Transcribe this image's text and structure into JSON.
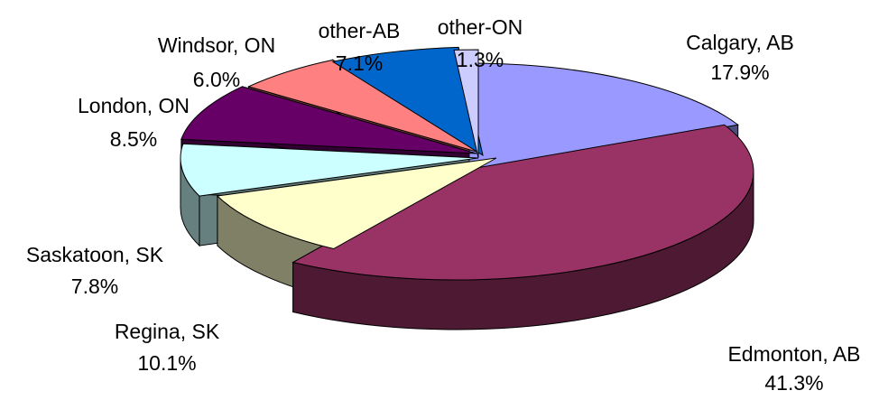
{
  "chart_data": {
    "type": "pie",
    "title": "",
    "legend": "none",
    "slices": [
      {
        "label": "Calgary, AB",
        "value": 17.9,
        "pct": "17.9%",
        "top": "#9999ff",
        "side": "#4d4d80"
      },
      {
        "label": "Edmonton, AB",
        "value": 41.3,
        "pct": "41.3%",
        "top": "#993366",
        "side": "#4d1933"
      },
      {
        "label": "Regina, SK",
        "value": 10.1,
        "pct": "10.1%",
        "top": "#ffffcc",
        "side": "#808066"
      },
      {
        "label": "Saskatoon, SK",
        "value": 7.8,
        "pct": "7.8%",
        "top": "#ccffff",
        "side": "#668080"
      },
      {
        "label": "London, ON",
        "value": 8.5,
        "pct": "8.5%",
        "top": "#660066",
        "side": "#330033"
      },
      {
        "label": "Windsor, ON",
        "value": 6.0,
        "pct": "6.0%",
        "top": "#ff8080",
        "side": "#804040"
      },
      {
        "label": "other-AB",
        "value": 7.1,
        "pct": "7.1%",
        "top": "#0066cc",
        "side": "#003366"
      },
      {
        "label": "other-ON",
        "value": 1.3,
        "pct": "1.3%",
        "top": "#ccccff",
        "side": "#666680"
      }
    ]
  }
}
